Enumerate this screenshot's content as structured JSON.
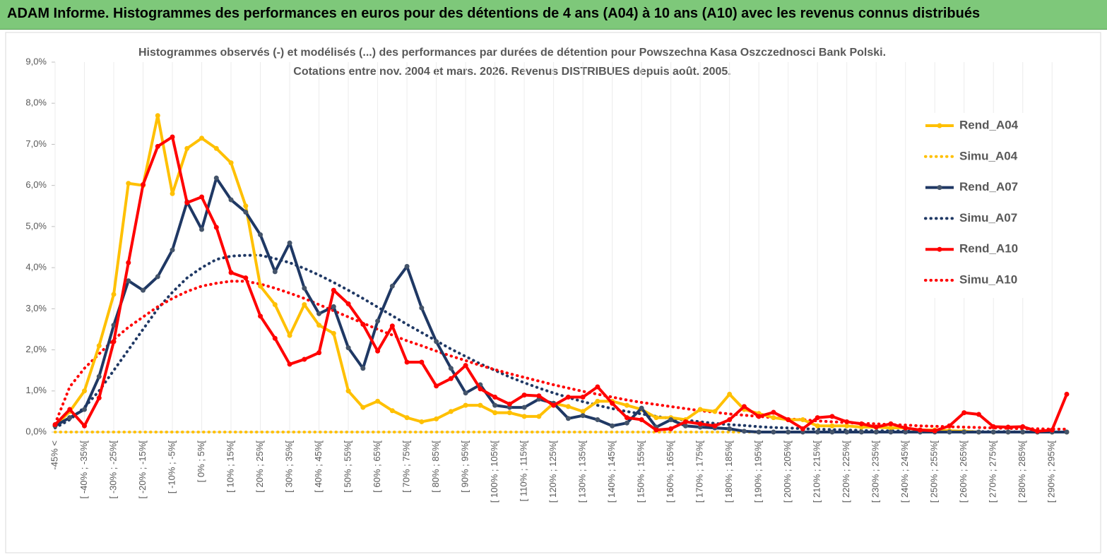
{
  "header": {
    "title": "ADAM Informe. Histogrammes des performances en euros pour des détentions de 4 ans (A04) à 10 ans (A10) avec les revenus connus distribués"
  },
  "chart_data": {
    "type": "line",
    "title": "Histogrammes observés (-) et modélisés (...)  des performances par durées de détention pour Powszechna Kasa Oszczednosci Bank Polski.",
    "subtitle": "Cotations entre nov. 2004 et mars. 2026. Revenus DISTRIBUES depuis août. 2005.",
    "categories": [
      "-45% <",
      null,
      "[ -40% ; -35%[",
      null,
      "[ -30% ; -25%[",
      null,
      "[ -20% ; -15%[",
      null,
      "[ -10% ; -5%[",
      null,
      "[ 0% ; 5%[",
      null,
      "[ 10% ; 15%[",
      null,
      "[ 20% ; 25%[",
      null,
      "[ 30% ; 35%[",
      null,
      "[ 40% ; 45%[",
      null,
      "[ 50% ; 55%[",
      null,
      "[ 60% ; 65%[",
      null,
      "[ 70% ; 75%[",
      null,
      "[ 80% ; 85%[",
      null,
      "[ 90% ; 95%[",
      null,
      "[ 100% ; 105%[",
      null,
      "[ 110% ; 115%[",
      null,
      "[ 120% ; 125%[",
      null,
      "[ 130% ; 135%[",
      null,
      "[ 140% ; 145%[",
      null,
      "[ 150% ; 155%[",
      null,
      "[ 160% ; 165%[",
      null,
      "[ 170% ; 175%[",
      null,
      "[ 180% ; 185%[",
      null,
      "[ 190% ; 195%[",
      null,
      "[ 200% ; 205%[",
      null,
      "[ 210% ; 215%[",
      null,
      "[ 220% ; 225%[",
      null,
      "[ 230% ; 235%[",
      null,
      "[ 240% ; 245%[",
      null,
      "[ 250% ; 255%[",
      null,
      "[ 260% ; 265%[",
      null,
      "[ 270% ; 275%[",
      null,
      "[ 280% ; 285%[",
      null,
      "[ 290% ; 295%[",
      null
    ],
    "series": [
      {
        "name": "Rend_A04",
        "color": "#ffc000",
        "line_style": "solid",
        "markers": true,
        "values": [
          0.15,
          0.5,
          1.0,
          2.1,
          3.35,
          6.05,
          6.0,
          7.7,
          5.8,
          6.9,
          7.15,
          6.9,
          6.55,
          5.5,
          3.55,
          3.1,
          2.35,
          3.1,
          2.6,
          2.4,
          1.0,
          0.6,
          0.75,
          0.52,
          0.35,
          0.25,
          0.32,
          0.5,
          0.65,
          0.65,
          0.47,
          0.47,
          0.38,
          0.38,
          0.7,
          0.62,
          0.5,
          0.75,
          0.75,
          0.65,
          0.55,
          0.35,
          0.35,
          0.3,
          0.55,
          0.5,
          0.92,
          0.55,
          0.45,
          0.35,
          0.3,
          0.3,
          0.15,
          0.15,
          0.15,
          0.12,
          0.12,
          0.1,
          0.1,
          0.05,
          0.05,
          0.03,
          0.02,
          0,
          0,
          0,
          0,
          0,
          0,
          0
        ]
      },
      {
        "name": "Simu_A04",
        "color": "#ffc000",
        "line_style": "dotted",
        "markers": false,
        "values": [
          0,
          0,
          0,
          0,
          0,
          0,
          0,
          0,
          0,
          0,
          0,
          0,
          0,
          0,
          0,
          0,
          0,
          0,
          0,
          0,
          0,
          0,
          0,
          0,
          0,
          0,
          0,
          0,
          0,
          0,
          0,
          0,
          0,
          0,
          0,
          0,
          0,
          0,
          0,
          0,
          0,
          0,
          0,
          0,
          0,
          0,
          0,
          0,
          0,
          0,
          0,
          0,
          0,
          0,
          0,
          0,
          0,
          0,
          0,
          0,
          0,
          0,
          0,
          0,
          0,
          0,
          0,
          0,
          0,
          0
        ]
      },
      {
        "name": "Rend_A07",
        "color": "#1f3864",
        "line_style": "solid",
        "markers": true,
        "values": [
          0.15,
          0.35,
          0.55,
          1.35,
          2.6,
          3.68,
          3.45,
          3.78,
          4.43,
          5.6,
          4.93,
          6.18,
          5.65,
          5.35,
          4.8,
          3.9,
          4.6,
          3.5,
          2.88,
          3.05,
          2.05,
          1.55,
          2.7,
          3.55,
          4.03,
          3.02,
          2.2,
          1.55,
          0.95,
          1.15,
          0.65,
          0.6,
          0.6,
          0.8,
          0.7,
          0.33,
          0.4,
          0.3,
          0.15,
          0.22,
          0.58,
          0.12,
          0.3,
          0.15,
          0.12,
          0.1,
          0.08,
          0.02,
          0,
          0,
          0,
          0,
          0,
          0,
          0,
          0,
          0,
          0,
          0,
          0,
          0,
          0,
          0,
          0,
          0,
          0,
          0,
          0,
          0,
          0
        ]
      },
      {
        "name": "Simu_A07",
        "color": "#1f3864",
        "line_style": "dotted",
        "markers": false,
        "values": [
          0.1,
          0.3,
          0.6,
          1.0,
          1.5,
          2.0,
          2.5,
          3.0,
          3.4,
          3.75,
          4.0,
          4.2,
          4.28,
          4.3,
          4.3,
          4.22,
          4.12,
          3.98,
          3.82,
          3.64,
          3.45,
          3.25,
          3.04,
          2.83,
          2.62,
          2.42,
          2.22,
          2.02,
          1.84,
          1.66,
          1.5,
          1.34,
          1.2,
          1.07,
          0.95,
          0.84,
          0.74,
          0.65,
          0.57,
          0.5,
          0.44,
          0.38,
          0.33,
          0.29,
          0.25,
          0.21,
          0.18,
          0.16,
          0.13,
          0.11,
          0.1,
          0.08,
          0.07,
          0.06,
          0.05,
          0.04,
          0.03,
          0.03,
          0.02,
          0.02,
          0.02,
          0.01,
          0.01,
          0.01,
          0.01,
          0.01,
          0,
          0,
          0,
          0
        ]
      },
      {
        "name": "Rend_A10",
        "color": "#ff0000",
        "line_style": "solid",
        "markers": true,
        "values": [
          0.18,
          0.55,
          0.15,
          0.83,
          2.2,
          4.12,
          6.02,
          6.95,
          7.18,
          5.58,
          5.72,
          4.98,
          3.88,
          3.75,
          2.82,
          2.28,
          1.65,
          1.77,
          1.93,
          3.45,
          3.12,
          2.62,
          1.97,
          2.58,
          1.7,
          1.7,
          1.12,
          1.3,
          1.62,
          1.05,
          0.85,
          0.68,
          0.9,
          0.88,
          0.65,
          0.85,
          0.85,
          1.1,
          0.7,
          0.35,
          0.3,
          0.05,
          0.08,
          0.25,
          0.2,
          0.15,
          0.3,
          0.62,
          0.38,
          0.48,
          0.3,
          0.08,
          0.35,
          0.38,
          0.25,
          0.2,
          0.12,
          0.2,
          0.1,
          0.05,
          0.03,
          0.15,
          0.47,
          0.43,
          0.13,
          0.12,
          0.13,
          0.02,
          0.05,
          0.92
        ]
      },
      {
        "name": "Simu_A10",
        "color": "#ff0000",
        "line_style": "dotted",
        "markers": false,
        "values": [
          0.2,
          1.1,
          1.55,
          1.9,
          2.25,
          2.55,
          2.8,
          3.05,
          3.25,
          3.42,
          3.55,
          3.62,
          3.67,
          3.67,
          3.6,
          3.5,
          3.38,
          3.25,
          3.1,
          2.95,
          2.8,
          2.65,
          2.5,
          2.36,
          2.22,
          2.1,
          1.97,
          1.85,
          1.74,
          1.62,
          1.52,
          1.42,
          1.33,
          1.24,
          1.15,
          1.07,
          0.99,
          0.92,
          0.85,
          0.78,
          0.72,
          0.67,
          0.62,
          0.57,
          0.52,
          0.48,
          0.44,
          0.41,
          0.38,
          0.35,
          0.32,
          0.3,
          0.27,
          0.25,
          0.23,
          0.21,
          0.2,
          0.18,
          0.17,
          0.15,
          0.14,
          0.13,
          0.12,
          0.11,
          0.1,
          0.09,
          0.08,
          0.08,
          0.07,
          0.07
        ]
      }
    ],
    "ylim": [
      0,
      9
    ],
    "yticks": [
      {
        "value": 0,
        "label": "0,0%"
      },
      {
        "value": 1,
        "label": "1,0%"
      },
      {
        "value": 2,
        "label": "2,0%"
      },
      {
        "value": 3,
        "label": "3,0%"
      },
      {
        "value": 4,
        "label": "4,0%"
      },
      {
        "value": 5,
        "label": "5,0%"
      },
      {
        "value": 6,
        "label": "6,0%"
      },
      {
        "value": 7,
        "label": "7,0%"
      },
      {
        "value": 8,
        "label": "8,0%"
      },
      {
        "value": 9,
        "label": "9,0%"
      }
    ],
    "grid": "x",
    "legend": "right"
  }
}
